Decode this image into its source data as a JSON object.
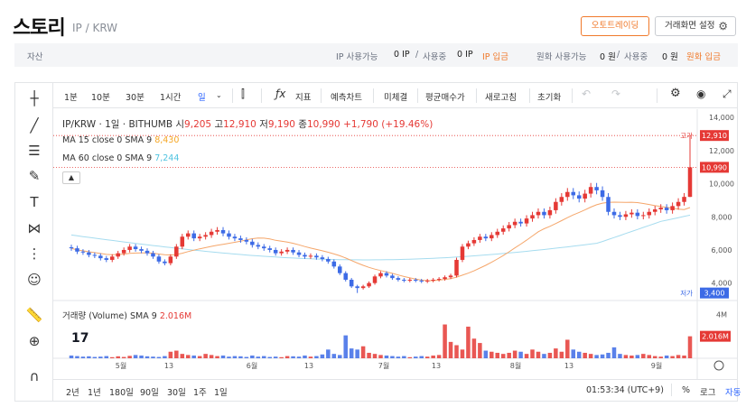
{
  "header": {
    "coin_name": "스토리",
    "pair": "IP / KRW",
    "auto_trading_button": "오토트레이딩",
    "settings_button": "거래화면 설정"
  },
  "asset_bar": {
    "asset_label": "자산",
    "ip_available_label": "IP 사용가능",
    "ip_available_value": "0 IP",
    "separator": "/",
    "ip_in_use_label": "사용중",
    "ip_in_use_value": "0 IP",
    "ip_deposit": "IP 입금",
    "krw_available_label": "원화 사용가능",
    "krw_available_value": "0 원",
    "krw_in_use_label": "사용중",
    "krw_in_use_value": "0 원",
    "krw_deposit": "원화 입금"
  },
  "toolbar": {
    "intervals": [
      "1분",
      "10분",
      "30분",
      "1시간",
      "일"
    ],
    "active_interval": "일",
    "indicators": "지표",
    "forecast_chart": "예측차트",
    "unfilled": "미체결",
    "avg_buy_price": "평균매수가",
    "refresh": "새로고침",
    "reset": "초기화"
  },
  "legend": {
    "symbol_line": "IP/KRW · 1일 · BITHUMB",
    "open_label": "시",
    "open": "9,205",
    "high_label": "고",
    "high": "12,910",
    "low_label": "저",
    "low": "9,190",
    "close_label": "종",
    "close": "10,990",
    "change": "+1,790 (+19.46%)",
    "ma15_label": "MA 15 close 0 SMA 9",
    "ma15_value": "8,430",
    "ma60_label": "MA 60 close 0 SMA 9",
    "ma60_value": "7,244",
    "volume_label": "거래량 (Volume) SMA 9",
    "volume_value": "2.016M"
  },
  "bottom_bar": {
    "ranges": [
      "2년",
      "1년",
      "180일",
      "90일",
      "30일",
      "1주",
      "1일"
    ],
    "time": "01:53:34 (UTC+9)",
    "percent": "%",
    "log": "로그",
    "auto": "자동"
  },
  "chart_data": {
    "type": "candlestick",
    "price_axis_ticks": [
      "14,000",
      "12,000",
      "10,000",
      "8,000",
      "6,000",
      "4,000"
    ],
    "volume_axis_ticks": [
      "4M"
    ],
    "high_marker_label": "고가",
    "high_marker_value": "12,910",
    "low_marker_label": "저가",
    "low_marker_value": "3,400",
    "last_price_label": "10,990",
    "last_volume_label": "2.016M",
    "x_tick_labels": [
      "5월",
      "13",
      "6월",
      "13",
      "7월",
      "13",
      "8월",
      "13",
      "9월"
    ],
    "ylim": [
      3000,
      14500
    ],
    "colors": {
      "up": "#e53935",
      "down": "#3d6be6",
      "ma15": "#f5a66a",
      "ma60": "#a6dcef"
    },
    "close_points": [
      6100,
      5900,
      5850,
      5700,
      5650,
      5500,
      5400,
      5600,
      5800,
      6000,
      6200,
      6050,
      5950,
      5800,
      5600,
      5300,
      5200,
      5600,
      6200,
      6800,
      7000,
      6700,
      6800,
      6900,
      7100,
      7200,
      7000,
      6800,
      6700,
      6600,
      6500,
      6300,
      6200,
      6100,
      6000,
      5800,
      5900,
      6000,
      5850,
      5700,
      5600,
      5650,
      5550,
      5450,
      5300,
      5000,
      4600,
      4200,
      3800,
      3700,
      3800,
      4000,
      4400,
      4600,
      4450,
      4300,
      4200,
      4150,
      4200,
      4150,
      4100,
      4150,
      4200,
      4250,
      4350,
      4450,
      5400,
      6200,
      6400,
      6600,
      6800,
      6700,
      6900,
      7100,
      7300,
      7500,
      7700,
      7600,
      7900,
      8100,
      8300,
      8100,
      8400,
      8900,
      9200,
      9500,
      9300,
      9100,
      9400,
      9800,
      9600,
      9200,
      8300,
      8100,
      8000,
      8150,
      8250,
      8050,
      8100,
      8300,
      8450,
      8550,
      8400,
      8650,
      8900,
      9205,
      10990
    ],
    "volume_points": [
      0.25,
      0.2,
      0.15,
      0.18,
      0.12,
      0.15,
      0.2,
      0.1,
      0.18,
      0.12,
      0.22,
      0.3,
      0.25,
      0.18,
      0.15,
      0.12,
      0.2,
      0.6,
      0.7,
      0.4,
      0.3,
      0.25,
      0.2,
      0.4,
      0.3,
      0.2,
      0.25,
      0.15,
      0.2,
      0.18,
      0.12,
      0.25,
      0.15,
      0.2,
      0.12,
      0.15,
      0.1,
      0.2,
      0.18,
      0.15,
      0.25,
      0.15,
      0.2,
      0.35,
      0.8,
      0.4,
      0.3,
      2.1,
      0.9,
      0.8,
      1.1,
      0.5,
      0.4,
      0.3,
      0.25,
      0.2,
      0.15,
      0.2,
      0.1,
      0.15,
      0.2,
      0.15,
      0.25,
      0.3,
      3.1,
      1.5,
      1.2,
      0.8,
      2.9,
      1.8,
      1.4,
      0.7,
      0.6,
      0.5,
      0.4,
      0.5,
      0.7,
      0.6,
      0.4,
      0.8,
      0.6,
      0.4,
      0.5,
      0.9,
      0.6,
      1.7,
      0.8,
      0.6,
      0.5,
      0.4,
      0.3,
      0.35,
      0.5,
      1.0,
      0.4,
      0.3,
      0.25,
      0.3,
      0.4,
      0.3,
      0.2,
      0.15,
      0.25,
      0.2,
      0.3,
      0.25,
      2.016
    ]
  }
}
